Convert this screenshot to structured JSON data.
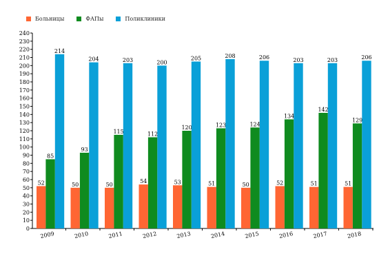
{
  "chart_data": {
    "type": "bar",
    "categories": [
      "2009",
      "2010",
      "2011",
      "2012",
      "2013",
      "2014",
      "2015",
      "2016",
      "2017",
      "2018"
    ],
    "series": [
      {
        "name": "Больницы",
        "color": "#ff6633",
        "values": [
          52,
          50,
          50,
          54,
          53,
          51,
          50,
          52,
          51,
          51
        ]
      },
      {
        "name": "ФАПы",
        "color": "#0f8b1f",
        "values": [
          85,
          93,
          115,
          112,
          120,
          123,
          124,
          134,
          142,
          129
        ]
      },
      {
        "name": "Поликлиники",
        "color": "#0aa0d8",
        "values": [
          214,
          204,
          203,
          200,
          205,
          208,
          206,
          203,
          203,
          206
        ]
      }
    ],
    "ylim": [
      0,
      240
    ],
    "ytick_step": 10,
    "grid": false,
    "legend_position": "top-left",
    "data_labels": true
  }
}
